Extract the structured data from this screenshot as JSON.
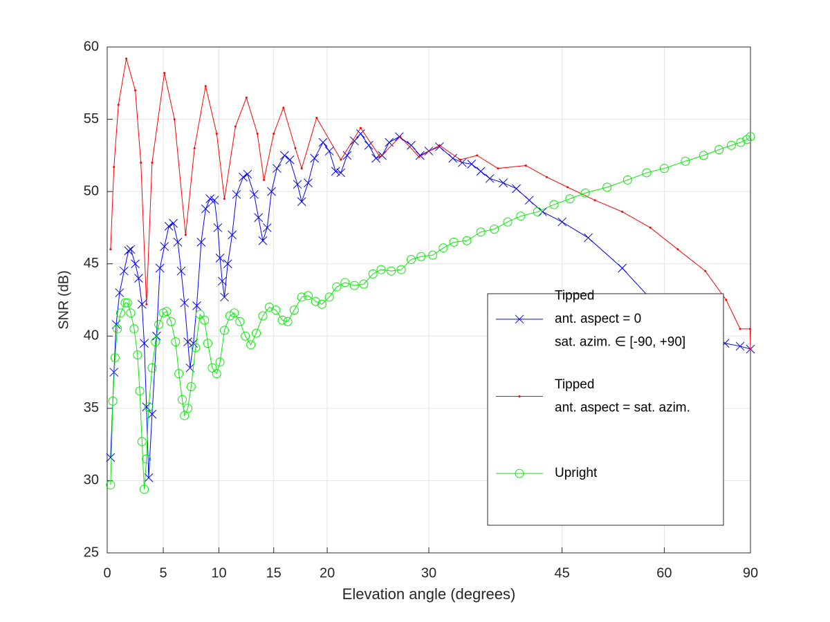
{
  "chart_data": {
    "type": "line",
    "xlabel": "Elevation angle (degrees)",
    "ylabel": "SNR (dB)",
    "xscale": "sine",
    "xlim": [
      0,
      90
    ],
    "xticks": [
      0,
      5,
      10,
      15,
      20,
      30,
      45,
      60,
      90
    ],
    "ylim": [
      25,
      60
    ],
    "yticks": [
      25,
      30,
      35,
      40,
      45,
      50,
      55,
      60
    ],
    "grid": true,
    "legend": "lower right",
    "series": [
      {
        "name": "Tipped\nant. aspect = 0\nsat. azim. ∈ [-90, +90]",
        "color": "#0000ff",
        "marker": "x",
        "x": [
          0.3,
          0.6,
          0.8,
          1.1,
          1.5,
          1.9,
          2.1,
          2.5,
          2.8,
          3.1,
          3.3,
          3.5,
          3.7,
          4.0,
          4.4,
          4.7,
          5.1,
          5.5,
          5.9,
          6.3,
          6.6,
          6.9,
          7.2,
          7.4,
          7.7,
          8.0,
          8.4,
          8.8,
          9.2,
          9.6,
          9.9,
          10.1,
          10.3,
          10.5,
          10.8,
          11.2,
          11.6,
          12.2,
          12.6,
          13.2,
          13.6,
          14.0,
          14.4,
          14.8,
          15.3,
          16.0,
          16.5,
          17.2,
          17.6,
          18.2,
          18.8,
          19.6,
          20.2,
          20.8,
          21.3,
          21.9,
          22.6,
          23.2,
          24.0,
          24.7,
          25.3,
          26.0,
          27.0,
          28.2,
          29.1,
          30.0,
          31.1,
          32.5,
          33.5,
          34.5,
          35.5,
          36.5,
          38.0,
          39.5,
          41.0,
          42.6,
          45.0,
          48.4,
          53.2,
          57.6,
          64.0,
          70.0,
          73.8,
          79.7,
          90.0
        ],
        "values": [
          31.6,
          37.5,
          40.8,
          43.0,
          44.5,
          45.9,
          46.0,
          45.0,
          44.0,
          42.2,
          39.5,
          35.1,
          30.2,
          34.6,
          40.0,
          44.7,
          46.2,
          47.6,
          47.8,
          46.5,
          44.5,
          42.3,
          39.6,
          37.8,
          39.5,
          42.1,
          46.5,
          48.8,
          49.5,
          49.4,
          47.5,
          45.4,
          43.8,
          42.7,
          45.0,
          47.0,
          49.8,
          51.0,
          51.2,
          49.8,
          48.2,
          46.6,
          47.5,
          50.0,
          51.6,
          52.5,
          52.2,
          50.5,
          49.3,
          50.6,
          52.3,
          53.4,
          52.8,
          51.4,
          51.3,
          52.5,
          53.5,
          54.0,
          53.2,
          52.3,
          52.5,
          53.4,
          53.8,
          53.2,
          52.5,
          52.8,
          53.1,
          52.3,
          52.0,
          51.9,
          51.4,
          50.9,
          50.6,
          50.2,
          49.4,
          48.6,
          47.9,
          46.8,
          44.7,
          42.6,
          41.5,
          40.5,
          39.5,
          39.3,
          39.1
        ]
      },
      {
        "name": "Tipped\nant. aspect = sat. azim.",
        "color": "#ff0000",
        "marker": "dot",
        "x": [
          0.3,
          0.6,
          1.0,
          1.7,
          2.5,
          3.0,
          3.5,
          4.0,
          5.1,
          6.0,
          7.0,
          7.8,
          8.8,
          9.8,
          10.5,
          11.5,
          12.5,
          13.5,
          14.1,
          15.0,
          15.9,
          17.0,
          17.6,
          19.0,
          21.3,
          23.2,
          25.1,
          27.1,
          29.0,
          31.1,
          33.3,
          35.1,
          37.4,
          40.6,
          43.1,
          45.7,
          49.3,
          53.2,
          57.6,
          62.5,
          68.4,
          74.2,
          79.7,
          88.0,
          90.0
        ],
        "values": [
          46.0,
          51.7,
          56.0,
          59.2,
          57.0,
          52.0,
          42.2,
          52.0,
          58.2,
          55.0,
          47.0,
          53.0,
          57.3,
          54.0,
          49.5,
          54.5,
          56.5,
          54.0,
          50.8,
          54.0,
          55.8,
          53.0,
          51.6,
          55.1,
          52.2,
          54.4,
          52.4,
          53.8,
          52.4,
          53.2,
          52.2,
          52.5,
          51.6,
          51.8,
          51.0,
          50.3,
          49.4,
          48.6,
          47.5,
          46.0,
          44.5,
          42.5,
          40.5,
          40.5,
          39.1
        ]
      },
      {
        "name": "Upright",
        "color": "#00ee00",
        "marker": "o",
        "x": [
          0.3,
          0.5,
          0.7,
          0.9,
          1.2,
          1.6,
          1.8,
          2.1,
          2.4,
          2.7,
          2.9,
          3.1,
          3.3,
          3.5,
          3.7,
          4.0,
          4.3,
          4.6,
          5.0,
          5.3,
          5.7,
          6.1,
          6.4,
          6.7,
          6.9,
          7.2,
          7.5,
          7.9,
          8.3,
          8.7,
          9.0,
          9.4,
          9.8,
          10.1,
          10.5,
          11.0,
          11.4,
          11.9,
          12.4,
          12.9,
          13.4,
          14.0,
          14.6,
          15.2,
          15.8,
          16.3,
          16.9,
          17.6,
          18.2,
          18.9,
          19.5,
          20.2,
          20.9,
          21.7,
          22.6,
          23.5,
          24.4,
          25.2,
          26.2,
          27.2,
          28.2,
          29.2,
          30.4,
          31.5,
          32.6,
          34.0,
          35.5,
          37.0,
          38.5,
          40.0,
          42.0,
          44.0,
          46.0,
          48.0,
          51.0,
          54.0,
          57.0,
          60.0,
          64.0,
          68.0,
          72.0,
          76.0,
          80.0,
          84.0,
          90.0
        ],
        "values": [
          29.7,
          35.5,
          38.5,
          40.5,
          41.6,
          42.3,
          42.3,
          41.6,
          40.5,
          38.7,
          36.2,
          32.7,
          29.4,
          31.5,
          35.1,
          37.8,
          39.6,
          40.8,
          41.6,
          41.7,
          41.0,
          39.6,
          37.4,
          35.6,
          34.5,
          35.0,
          36.5,
          39.2,
          41.5,
          41.1,
          39.5,
          37.8,
          37.4,
          38.2,
          40.4,
          41.4,
          41.6,
          41.0,
          40.0,
          39.4,
          40.2,
          41.4,
          42.0,
          41.8,
          41.1,
          41.0,
          41.8,
          42.7,
          42.8,
          42.4,
          42.2,
          42.7,
          43.4,
          43.7,
          43.5,
          43.6,
          44.3,
          44.6,
          44.5,
          44.6,
          45.3,
          45.5,
          45.6,
          46.1,
          46.5,
          46.6,
          47.2,
          47.4,
          47.9,
          48.3,
          48.6,
          49.1,
          49.5,
          49.9,
          50.3,
          50.8,
          51.3,
          51.6,
          52.1,
          52.5,
          52.9,
          53.2,
          53.4,
          53.6,
          53.8
        ]
      }
    ]
  }
}
